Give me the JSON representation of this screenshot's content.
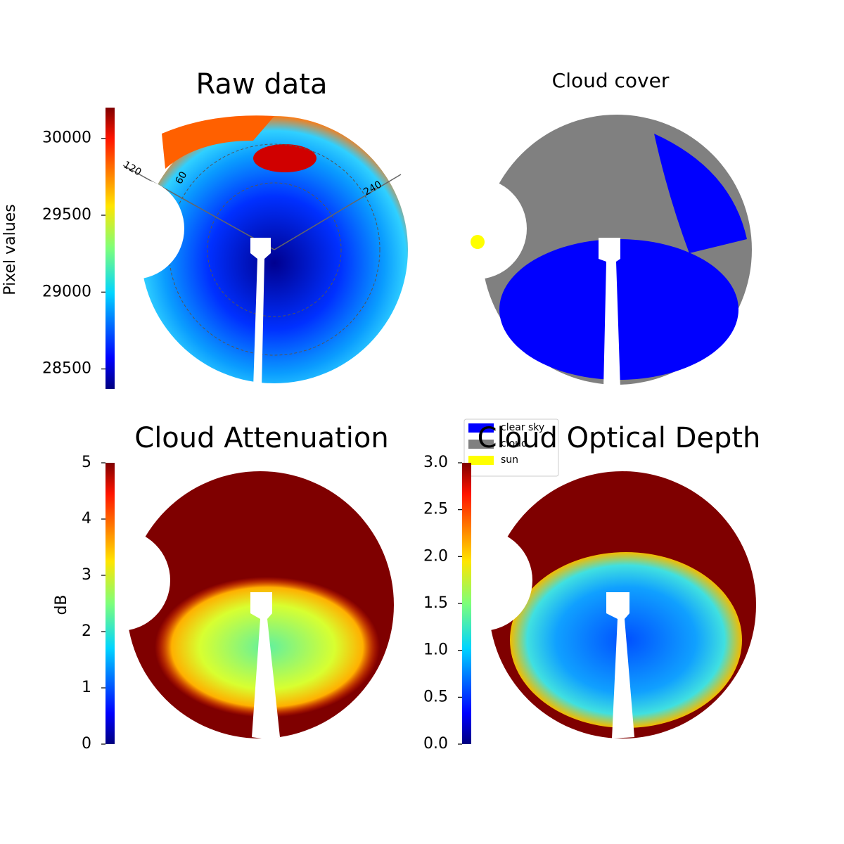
{
  "chart_data": [
    {
      "type": "image",
      "title": "Raw data",
      "colorbar_label": "Pixel values",
      "colormap": "jet",
      "ylim": [
        28370,
        30200
      ],
      "yticks": [
        28500,
        29000,
        29500,
        30000
      ],
      "annotations": [
        "120",
        "60",
        "240"
      ]
    },
    {
      "type": "image",
      "title": "Cloud cover",
      "legend_entries": [
        {
          "name": "clear sky",
          "color": "#0000ff"
        },
        {
          "name": "cloud",
          "color": "#808080"
        },
        {
          "name": "sun",
          "color": "#ffff00"
        }
      ]
    },
    {
      "type": "image",
      "title": "Cloud Attenuation",
      "colorbar_label": "dB",
      "colormap": "jet",
      "ylim": [
        0,
        5
      ],
      "yticks": [
        0,
        1,
        2,
        3,
        4,
        5
      ]
    },
    {
      "type": "image",
      "title": "Cloud Optical Depth",
      "colormap": "jet",
      "ylim": [
        0,
        3
      ],
      "yticks": [
        {
          "value": 0,
          "label": "0.0"
        },
        {
          "value": 0.5,
          "label": "0.5"
        },
        {
          "value": 1,
          "label": "1.0"
        },
        {
          "value": 1.5,
          "label": "1.5"
        },
        {
          "value": 2,
          "label": "2.0"
        },
        {
          "value": 2.5,
          "label": "2.5"
        },
        {
          "value": 3,
          "label": "3.0"
        }
      ]
    }
  ]
}
